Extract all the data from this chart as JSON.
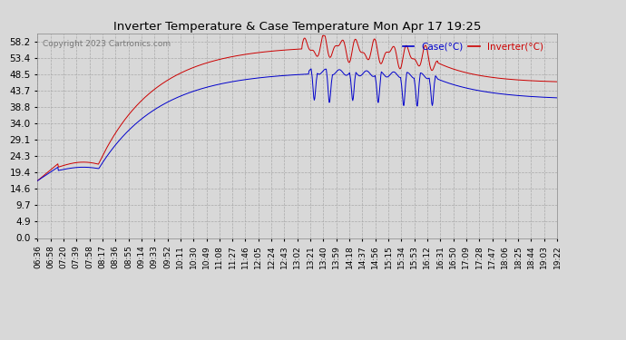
{
  "title": "Inverter Temperature & Case Temperature Mon Apr 17 19:25",
  "copyright": "Copyright 2023 Cartronics.com",
  "legend_case": "Case(°C)",
  "legend_inverter": "Inverter(°C)",
  "case_color": "#0000cc",
  "inverter_color": "#cc0000",
  "background_color": "#d8d8d8",
  "plot_bg_color": "#d8d8d8",
  "grid_color": "#aaaaaa",
  "yticks": [
    0.0,
    4.9,
    9.7,
    14.6,
    19.4,
    24.3,
    29.1,
    34.0,
    38.8,
    43.7,
    48.5,
    53.4,
    58.2
  ],
  "ylim": [
    0.0,
    60.5
  ],
  "xtick_labels": [
    "06:36",
    "06:58",
    "07:20",
    "07:39",
    "07:58",
    "08:17",
    "08:36",
    "08:55",
    "09:14",
    "09:33",
    "09:52",
    "10:11",
    "10:30",
    "10:49",
    "11:08",
    "11:27",
    "11:46",
    "12:05",
    "12:24",
    "12:43",
    "13:02",
    "13:21",
    "13:40",
    "13:59",
    "14:18",
    "14:37",
    "14:56",
    "15:15",
    "15:34",
    "15:53",
    "16:12",
    "16:31",
    "16:50",
    "17:09",
    "17:28",
    "17:47",
    "18:06",
    "18:25",
    "18:44",
    "19:03",
    "19:22"
  ]
}
